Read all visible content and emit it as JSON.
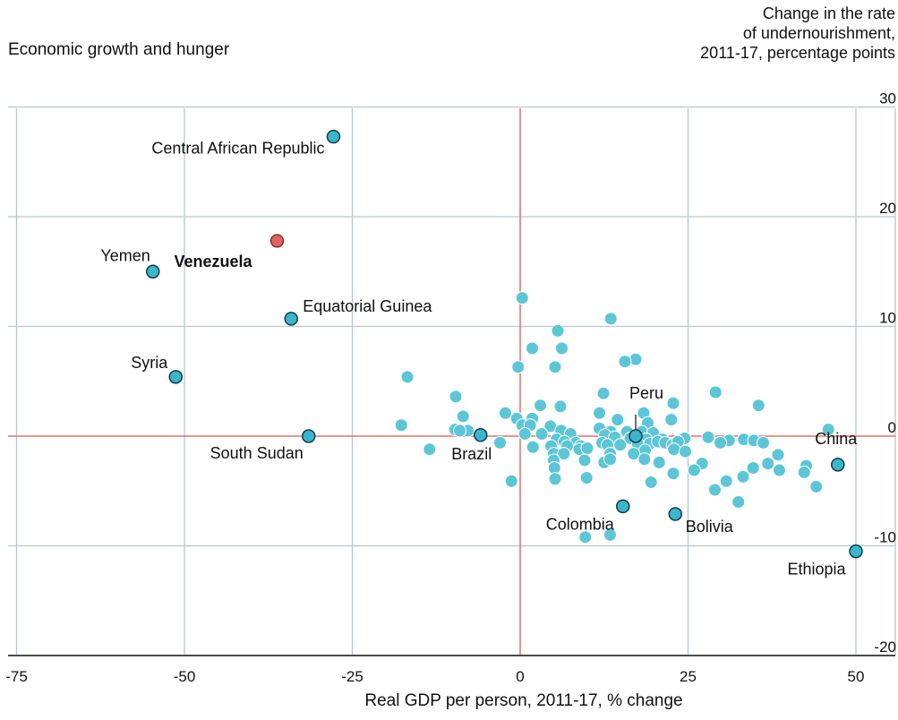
{
  "chart_data": {
    "type": "scatter",
    "title": "Economic growth and hunger",
    "xlabel": "Real GDP per person, 2011-17, % change",
    "ylabel_lines": [
      "Change in the rate",
      "of undernourishment,",
      "2011-17, percentage points"
    ],
    "xlim": [
      -76,
      54
    ],
    "ylim": [
      -20,
      30
    ],
    "xticks": [
      -75,
      -50,
      -25,
      0,
      25,
      50
    ],
    "xtick_labels": [
      "-75",
      "-50",
      "-25",
      "0",
      "25",
      "50"
    ],
    "yticks": [
      -20,
      -10,
      0,
      10,
      20,
      30
    ],
    "ytick_labels": [
      "-20",
      "-10",
      "0",
      "10",
      "20",
      "30"
    ],
    "grid": true,
    "colors": {
      "dot": "#5cc6d6",
      "dot_highlight": "#3ab7cc",
      "dot_outline": "#0f3d4a",
      "venezuela": "#e06262",
      "zero_line": "#e0726c",
      "grid": "#b9c6cc"
    },
    "labeled_points": [
      {
        "label": "Central African Republic",
        "x": -27.8,
        "y": 27.3,
        "color": "teal"
      },
      {
        "label": "Venezuela",
        "x": -36.2,
        "y": 17.8,
        "color": "red",
        "bold": true
      },
      {
        "label": "Yemen",
        "x": -54.7,
        "y": 15.0,
        "color": "teal"
      },
      {
        "label": "Equatorial Guinea",
        "x": -34.1,
        "y": 10.7,
        "color": "teal"
      },
      {
        "label": "Syria",
        "x": -51.3,
        "y": 5.4,
        "color": "teal"
      },
      {
        "label": "South Sudan",
        "x": -31.5,
        "y": 0.0,
        "color": "teal"
      },
      {
        "label": "Brazil",
        "x": -5.9,
        "y": 0.1,
        "color": "teal"
      },
      {
        "label": "Peru",
        "x": 17.2,
        "y": 0.0,
        "color": "teal"
      },
      {
        "label": "China",
        "x": 47.3,
        "y": -2.6,
        "color": "teal"
      },
      {
        "label": "Colombia",
        "x": 15.3,
        "y": -6.4,
        "color": "teal"
      },
      {
        "label": "Bolivia",
        "x": 23.1,
        "y": -7.1,
        "color": "teal"
      },
      {
        "label": "Ethiopia",
        "x": 50.0,
        "y": -10.5,
        "color": "teal"
      }
    ],
    "other_points": [
      {
        "x": 0.3,
        "y": 12.6
      },
      {
        "x": 13.5,
        "y": 10.7
      },
      {
        "x": 5.6,
        "y": 9.6
      },
      {
        "x": 1.8,
        "y": 8.0
      },
      {
        "x": 6.2,
        "y": 8.0
      },
      {
        "x": 17.2,
        "y": 7.0
      },
      {
        "x": 15.6,
        "y": 6.8
      },
      {
        "x": 5.2,
        "y": 6.3
      },
      {
        "x": -0.3,
        "y": 6.3
      },
      {
        "x": -16.8,
        "y": 5.4
      },
      {
        "x": 29.1,
        "y": 4.0
      },
      {
        "x": 12.4,
        "y": 3.9
      },
      {
        "x": -9.6,
        "y": 3.6
      },
      {
        "x": 22.8,
        "y": 3.0
      },
      {
        "x": 35.5,
        "y": 2.8
      },
      {
        "x": 3.0,
        "y": 2.8
      },
      {
        "x": 6.0,
        "y": 2.7
      },
      {
        "x": -2.2,
        "y": 2.1
      },
      {
        "x": 11.8,
        "y": 2.1
      },
      {
        "x": 18.4,
        "y": 2.1
      },
      {
        "x": -8.5,
        "y": 1.8
      },
      {
        "x": 1.8,
        "y": 1.6
      },
      {
        "x": -0.5,
        "y": 1.6
      },
      {
        "x": 14.5,
        "y": 1.5
      },
      {
        "x": 22.5,
        "y": 1.5
      },
      {
        "x": 0.3,
        "y": 1.0
      },
      {
        "x": 1.5,
        "y": 1.0
      },
      {
        "x": 19.0,
        "y": 1.2
      },
      {
        "x": -17.7,
        "y": 1.0
      },
      {
        "x": 45.9,
        "y": 0.6
      },
      {
        "x": 4.5,
        "y": 0.9
      },
      {
        "x": 11.8,
        "y": 0.7
      },
      {
        "x": -9.7,
        "y": 0.6
      },
      {
        "x": -7.8,
        "y": 0.5
      },
      {
        "x": 6.1,
        "y": 0.5
      },
      {
        "x": 13.5,
        "y": 0.4
      },
      {
        "x": 15.9,
        "y": 0.4
      },
      {
        "x": 18.1,
        "y": 0.4
      },
      {
        "x": 19.8,
        "y": 0.3
      },
      {
        "x": 0.7,
        "y": 0.2
      },
      {
        "x": 3.2,
        "y": 0.2
      },
      {
        "x": 7.5,
        "y": 0.2
      },
      {
        "x": 12.6,
        "y": 0.1
      },
      {
        "x": 14.1,
        "y": -0.1
      },
      {
        "x": 16.4,
        "y": -0.2
      },
      {
        "x": 18.8,
        "y": -0.3
      },
      {
        "x": 21.2,
        "y": -0.3
      },
      {
        "x": 24.5,
        "y": -0.2
      },
      {
        "x": 28.0,
        "y": -0.1
      },
      {
        "x": 31.1,
        "y": -0.4
      },
      {
        "x": 33.3,
        "y": -0.3
      },
      {
        "x": 34.8,
        "y": -0.4
      },
      {
        "x": 36.2,
        "y": -0.6
      },
      {
        "x": 5.4,
        "y": -0.3
      },
      {
        "x": 6.6,
        "y": -0.5
      },
      {
        "x": 8.3,
        "y": -0.6
      },
      {
        "x": 9.0,
        "y": -0.9
      },
      {
        "x": 12.2,
        "y": -0.6
      },
      {
        "x": 13.0,
        "y": -0.8
      },
      {
        "x": 14.9,
        "y": -0.8
      },
      {
        "x": 17.5,
        "y": -0.7
      },
      {
        "x": 19.3,
        "y": -0.7
      },
      {
        "x": 20.5,
        "y": -0.5
      },
      {
        "x": 21.6,
        "y": -0.6
      },
      {
        "x": 22.7,
        "y": -0.8
      },
      {
        "x": 23.5,
        "y": -0.5
      },
      {
        "x": 29.8,
        "y": -0.6
      },
      {
        "x": 4.6,
        "y": -0.9
      },
      {
        "x": 7.0,
        "y": -0.9
      },
      {
        "x": 8.8,
        "y": -1.2
      },
      {
        "x": 10.0,
        "y": -1.1
      },
      {
        "x": 18.6,
        "y": -1.3
      },
      {
        "x": 22.9,
        "y": -1.2
      },
      {
        "x": 24.6,
        "y": -1.4
      },
      {
        "x": -13.5,
        "y": -1.2
      },
      {
        "x": -3.0,
        "y": -0.6
      },
      {
        "x": -9.0,
        "y": 0.5
      },
      {
        "x": 1.9,
        "y": -1.0
      },
      {
        "x": 5.0,
        "y": -1.6
      },
      {
        "x": 6.5,
        "y": -1.6
      },
      {
        "x": 13.4,
        "y": -1.6
      },
      {
        "x": 16.9,
        "y": -1.6
      },
      {
        "x": 18.5,
        "y": -2.1
      },
      {
        "x": 9.6,
        "y": -2.2
      },
      {
        "x": 12.5,
        "y": -2.4
      },
      {
        "x": 13.4,
        "y": -2.1
      },
      {
        "x": 20.7,
        "y": -2.4
      },
      {
        "x": 27.1,
        "y": -2.5
      },
      {
        "x": 38.4,
        "y": -1.7
      },
      {
        "x": 5.0,
        "y": -2.2
      },
      {
        "x": 5.1,
        "y": -2.9
      },
      {
        "x": 36.9,
        "y": -2.5
      },
      {
        "x": 34.7,
        "y": -2.9
      },
      {
        "x": 25.9,
        "y": -3.1
      },
      {
        "x": 38.6,
        "y": -3.1
      },
      {
        "x": 42.6,
        "y": -2.7
      },
      {
        "x": 42.3,
        "y": -3.3
      },
      {
        "x": 22.8,
        "y": -3.4
      },
      {
        "x": 9.9,
        "y": -3.8
      },
      {
        "x": 5.2,
        "y": -3.9
      },
      {
        "x": 33.2,
        "y": -3.7
      },
      {
        "x": 30.7,
        "y": -4.1
      },
      {
        "x": 44.1,
        "y": -4.6
      },
      {
        "x": 19.5,
        "y": -4.2
      },
      {
        "x": -1.3,
        "y": -4.1
      },
      {
        "x": 29.0,
        "y": -4.9
      },
      {
        "x": 32.5,
        "y": -6.0
      },
      {
        "x": 9.7,
        "y": -9.2
      },
      {
        "x": 13.4,
        "y": -9.0
      }
    ]
  }
}
